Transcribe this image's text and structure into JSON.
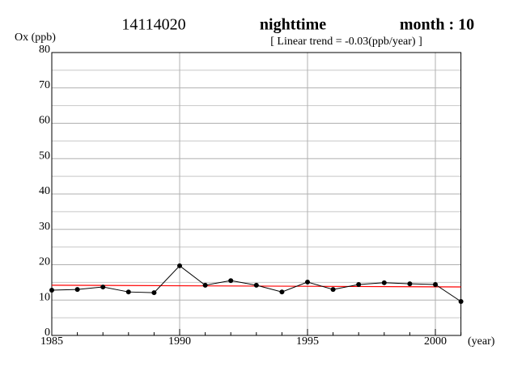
{
  "chart_data": {
    "type": "line",
    "title": [
      "14114020",
      "nighttime",
      "month : 10"
    ],
    "subtitle": "[ Linear trend = -0.03(ppb/year) ]",
    "y_label": "Ox (ppb)",
    "x_label": "(year)",
    "xlim": [
      1985,
      2001
    ],
    "ylim": [
      0,
      80
    ],
    "xticks": [
      1985,
      1990,
      1995,
      2000
    ],
    "yticks": [
      0,
      10,
      20,
      30,
      40,
      50,
      60,
      70,
      80
    ],
    "xminor": [
      1986,
      1987,
      1988,
      1989,
      1991,
      1992,
      1993,
      1994,
      1996,
      1997,
      1998,
      1999,
      2001
    ],
    "yminor": [
      5,
      15,
      25,
      35,
      45,
      55,
      65,
      75
    ],
    "grid": true,
    "x": [
      1985,
      1986,
      1987,
      1988,
      1989,
      1990,
      1991,
      1992,
      1993,
      1994,
      1995,
      1996,
      1997,
      1998,
      1999,
      2000,
      2001
    ],
    "series": [
      {
        "color": "#000000",
        "values": [
          12.8,
          13.0,
          13.7,
          12.3,
          12.1,
          19.7,
          14.2,
          15.5,
          14.2,
          12.3,
          15.1,
          13.0,
          14.4,
          14.9,
          14.6,
          14.4,
          9.6
        ]
      }
    ],
    "trend": {
      "color": "#ff0000",
      "x": [
        1985,
        2001
      ],
      "values": [
        14.2,
        13.72
      ]
    }
  }
}
